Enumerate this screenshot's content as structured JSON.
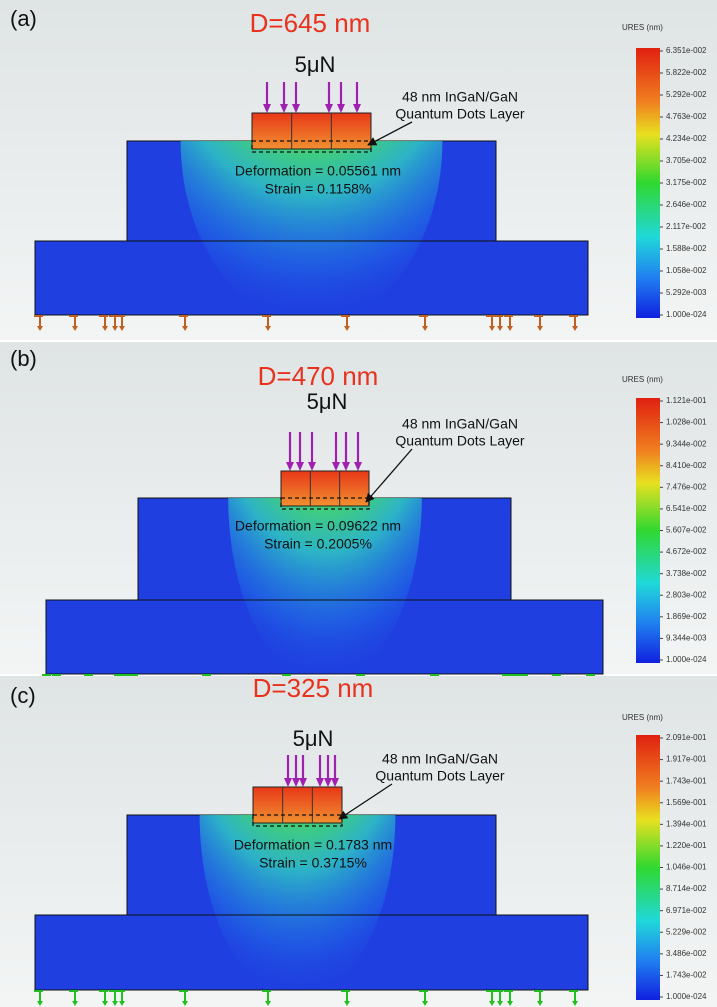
{
  "panels": [
    {
      "label": "(a)",
      "title": "D=645 nm",
      "force": "5μN",
      "layer_label": [
        "48 nm InGaN/GaN",
        "Quantum Dots Layer"
      ],
      "deformation": "Deformation = 0.05561 nm",
      "strain": "Strain = 0.1158%",
      "colorbar": {
        "title": "URES (nm)",
        "labels": [
          "6.351e-002",
          "5.822e-002",
          "5.292e-002",
          "4.763e-002",
          "4.234e-002",
          "3.705e-002",
          "3.175e-002",
          "2.646e-002",
          "2.117e-002",
          "1.588e-002",
          "1.058e-002",
          "5.292e-003",
          "1.000e-024"
        ]
      }
    },
    {
      "label": "(b)",
      "title": "D=470 nm",
      "force": "5μN",
      "layer_label": [
        "48 nm InGaN/GaN",
        "Quantum Dots Layer"
      ],
      "deformation": "Deformation = 0.09622 nm",
      "strain": "Strain = 0.2005%",
      "colorbar": {
        "title": "URES (nm)",
        "labels": [
          "1.121e-001",
          "1.028e-001",
          "9.344e-002",
          "8.410e-002",
          "7.476e-002",
          "6.541e-002",
          "5.607e-002",
          "4.672e-002",
          "3.738e-002",
          "2.803e-002",
          "1.869e-002",
          "9.344e-003",
          "1.000e-024"
        ]
      }
    },
    {
      "label": "(c)",
      "title": "D=325 nm",
      "force": "5μN",
      "layer_label": [
        "48 nm InGaN/GaN",
        "Quantum Dots Layer"
      ],
      "deformation": "Deformation = 0.1783 nm",
      "strain": "Strain = 0.3715%",
      "colorbar": {
        "title": "URES (nm)",
        "labels": [
          "2.091e-001",
          "1.917e-001",
          "1.743e-001",
          "1.569e-001",
          "1.394e-001",
          "1.220e-001",
          "1.046e-001",
          "8.714e-002",
          "6.971e-002",
          "5.229e-002",
          "3.486e-002",
          "1.743e-002",
          "1.000e-024"
        ]
      }
    }
  ]
}
